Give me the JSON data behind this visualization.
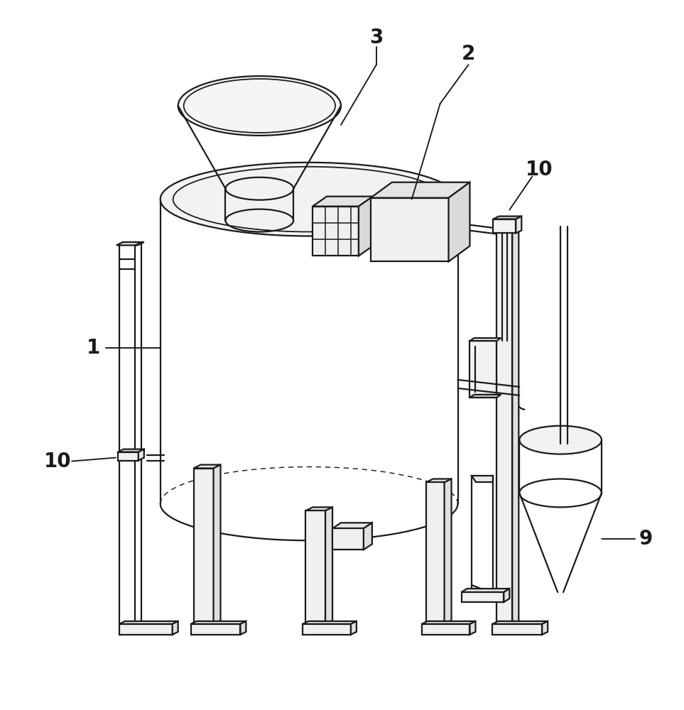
{
  "bg_color": "#ffffff",
  "line_color": "#1a1a1a",
  "lw": 1.6,
  "label_fontsize": 20
}
